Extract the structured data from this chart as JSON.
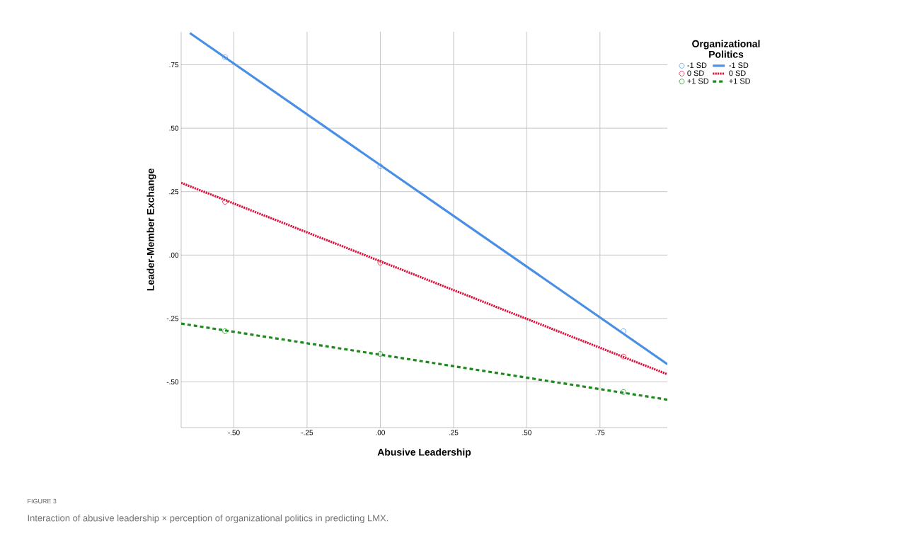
{
  "chart_data": {
    "type": "scatter",
    "xlabel": "Abusive Leadership",
    "ylabel": "Leader-Member Exchange",
    "legend_title": "Organizational Politics",
    "legend": "top right",
    "grid": true,
    "xlim": [
      -0.68,
      0.98
    ],
    "ylim": [
      -0.68,
      0.88
    ],
    "xticks": [
      {
        "value": -0.5,
        "label": "-.50"
      },
      {
        "value": -0.25,
        "label": "-.25"
      },
      {
        "value": 0,
        "label": ".00"
      },
      {
        "value": 0.25,
        "label": ".25"
      },
      {
        "value": 0.5,
        "label": ".50"
      },
      {
        "value": 0.75,
        "label": ".75"
      }
    ],
    "yticks": [
      {
        "value": -0.5,
        "label": "-.50"
      },
      {
        "value": -0.25,
        "label": "-.25"
      },
      {
        "value": 0,
        "label": ".00"
      },
      {
        "value": 0.25,
        "label": ".25"
      },
      {
        "value": 0.5,
        "label": ".50"
      },
      {
        "value": 0.75,
        "label": ".75"
      }
    ],
    "series": [
      {
        "name": "-1 SD",
        "marker": "circle",
        "color": "#5b9be8",
        "x": [
          -0.53,
          0,
          0.83
        ],
        "values": [
          0.78,
          0.35,
          -0.3
        ]
      },
      {
        "name": "-1 SD",
        "type": "line",
        "line_style": "solid",
        "color": "#4a8fe6",
        "x": [
          -0.65,
          0.98
        ],
        "values": [
          0.875,
          -0.43
        ]
      },
      {
        "name": "0 SD",
        "marker": "circle",
        "color": "#e0203f",
        "x": [
          -0.53,
          0,
          0.83
        ],
        "values": [
          0.21,
          -0.03,
          -0.4
        ]
      },
      {
        "name": "0 SD",
        "type": "line",
        "line_style": "dotted",
        "color": "#e0103c",
        "x": [
          -0.68,
          0.98
        ],
        "values": [
          0.285,
          -0.47
        ]
      },
      {
        "name": "+1 SD",
        "marker": "circle",
        "color": "#2a8f2a",
        "x": [
          -0.53,
          0,
          0.83
        ],
        "values": [
          -0.3,
          -0.39,
          -0.54
        ]
      },
      {
        "name": "+1 SD",
        "type": "line",
        "line_style": "dashed",
        "color": "#1e8a1e",
        "x": [
          -0.68,
          0.98
        ],
        "values": [
          -0.27,
          -0.57
        ]
      }
    ],
    "annotations": [
      "FIGURE 3",
      "Interaction of abusive leadership × perception of organizational politics in predicting LMX."
    ]
  }
}
